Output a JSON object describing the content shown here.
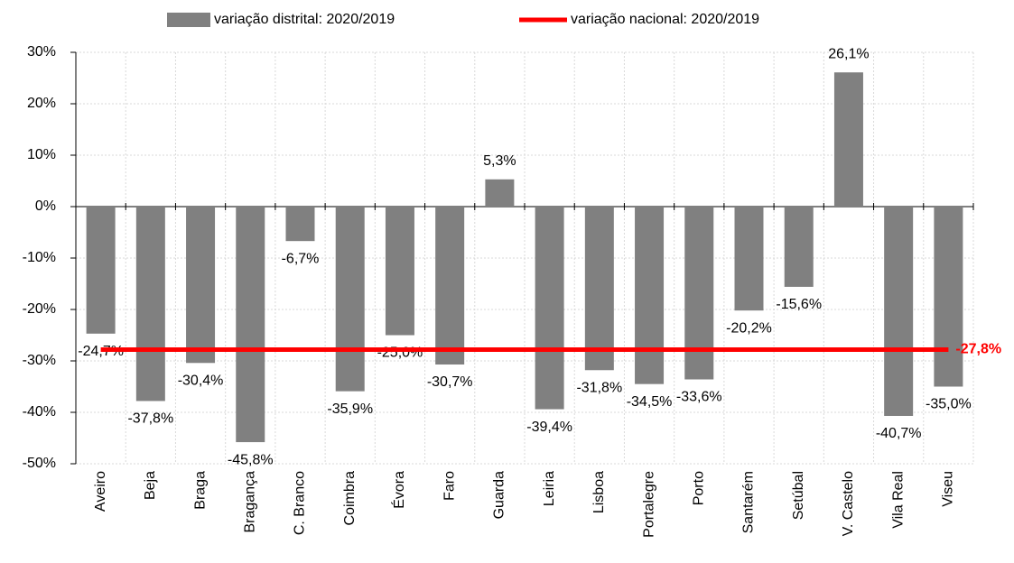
{
  "chart_data": {
    "type": "bar",
    "categories": [
      "Aveiro",
      "Beja",
      "Braga",
      "Bragança",
      "C. Branco",
      "Coimbra",
      "Évora",
      "Faro",
      "Guarda",
      "Leiria",
      "Lisboa",
      "Portalegre",
      "Porto",
      "Santarém",
      "Setúbal",
      "V. Castelo",
      "Vila Real",
      "Viseu"
    ],
    "series": [
      {
        "name": "variação distrital: 2020/2019",
        "color": "#808080",
        "type": "bar",
        "values": [
          -24.7,
          -37.8,
          -30.4,
          -45.8,
          -6.7,
          -35.9,
          -25.0,
          -30.7,
          5.3,
          -39.4,
          -31.8,
          -34.5,
          -33.6,
          -20.2,
          -15.6,
          26.1,
          -40.7,
          -35.0
        ],
        "value_labels": [
          "-24,7%",
          "-37,8%",
          "-30,4%",
          "-45,8%",
          "-6,7%",
          "-35,9%",
          "-25,0%",
          "-30,7%",
          "5,3%",
          "-39,4%",
          "-31,8%",
          "-34,5%",
          "-33,6%",
          "-20,2%",
          "-15,6%",
          "26,1%",
          "-40,7%",
          "-35,0%"
        ]
      },
      {
        "name": "variação nacional: 2020/2019",
        "color": "#ff0000",
        "type": "line",
        "values": [
          -27.8,
          -27.8,
          -27.8,
          -27.8,
          -27.8,
          -27.8,
          -27.8,
          -27.8,
          -27.8,
          -27.8,
          -27.8,
          -27.8,
          -27.8,
          -27.8,
          -27.8,
          -27.8,
          -27.8,
          -27.8
        ],
        "value_labels": [
          null,
          null,
          null,
          null,
          null,
          null,
          null,
          null,
          null,
          null,
          null,
          null,
          null,
          null,
          null,
          null,
          null,
          "-27,8%"
        ]
      }
    ],
    "ylim": [
      -50,
      30
    ],
    "yticks": [
      {
        "value": -50,
        "label": "-50%"
      },
      {
        "value": -40,
        "label": "-40%"
      },
      {
        "value": -30,
        "label": "-30%"
      },
      {
        "value": -20,
        "label": "-20%"
      },
      {
        "value": -10,
        "label": "-10%"
      },
      {
        "value": 0,
        "label": "0%"
      },
      {
        "value": 10,
        "label": "10%"
      },
      {
        "value": 20,
        "label": "20%"
      },
      {
        "value": 30,
        "label": "30%"
      }
    ],
    "grid": true,
    "legend": "top"
  }
}
